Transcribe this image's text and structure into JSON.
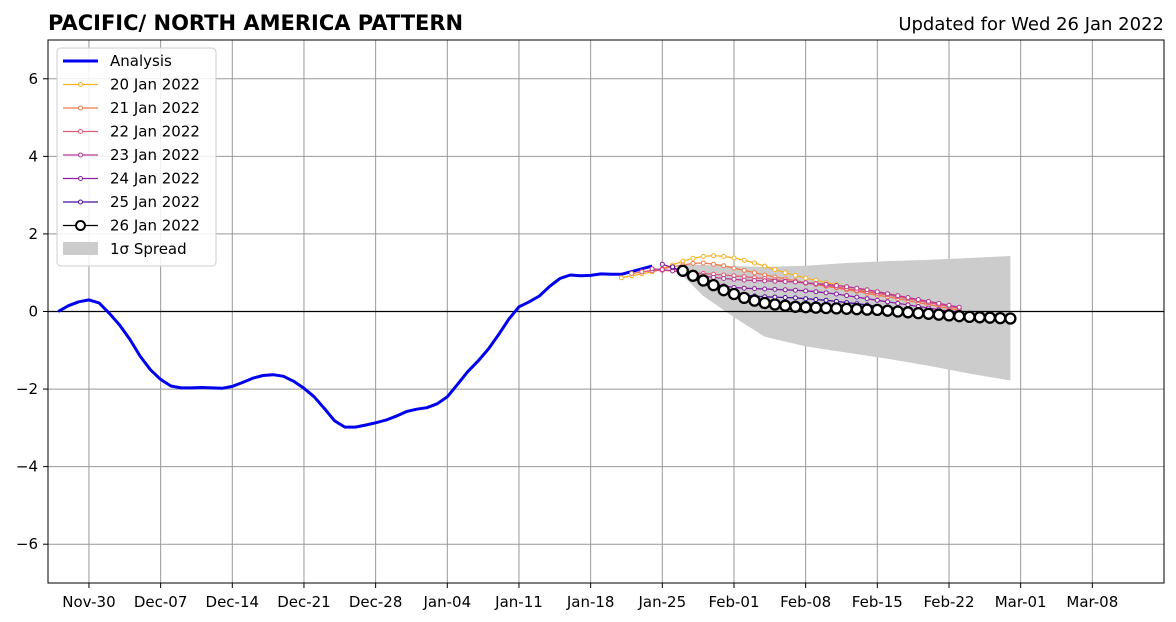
{
  "chart_data": {
    "type": "line",
    "title": "PACIFIC/ NORTH AMERICA PATTERN",
    "subtitle": "Updated for Wed 26 Jan 2022",
    "xlabel": "",
    "ylabel": "",
    "x_start": "2021-11-26",
    "x_end": "2022-03-15",
    "ylim": [
      -7,
      7
    ],
    "yticks": [
      -6,
      -4,
      -2,
      0,
      2,
      4,
      6
    ],
    "ytick_labels": [
      "−6",
      "−4",
      "−2",
      "0",
      "2",
      "4",
      "6"
    ],
    "xticks": [
      "2021-11-30",
      "2021-12-07",
      "2021-12-14",
      "2021-12-21",
      "2021-12-28",
      "2022-01-04",
      "2022-01-11",
      "2022-01-18",
      "2022-01-25",
      "2022-02-01",
      "2022-02-08",
      "2022-02-15",
      "2022-02-22",
      "2022-03-01",
      "2022-03-08"
    ],
    "xtick_labels": [
      "Nov-30",
      "Dec-07",
      "Dec-14",
      "Dec-21",
      "Dec-28",
      "Jan-04",
      "Jan-11",
      "Jan-18",
      "Jan-25",
      "Feb-01",
      "Feb-08",
      "Feb-15",
      "Feb-22",
      "Mar-01",
      "Mar-08"
    ],
    "grid": true,
    "legend_position": "top-left",
    "analysis": {
      "name": "Analysis",
      "color": "#0000ee",
      "x_start": "2021-11-27",
      "values": [
        0.0,
        0.15,
        0.25,
        0.3,
        0.22,
        -0.05,
        -0.35,
        -0.72,
        -1.15,
        -1.5,
        -1.75,
        -1.92,
        -1.97,
        -1.97,
        -1.96,
        -1.97,
        -1.98,
        -1.93,
        -1.83,
        -1.72,
        -1.65,
        -1.63,
        -1.67,
        -1.8,
        -1.98,
        -2.2,
        -2.5,
        -2.82,
        -2.98,
        -2.98,
        -2.93,
        -2.87,
        -2.8,
        -2.7,
        -2.58,
        -2.52,
        -2.48,
        -2.38,
        -2.2,
        -1.88,
        -1.55,
        -1.28,
        -0.97,
        -0.6,
        -0.2,
        0.12,
        0.25,
        0.4,
        0.65,
        0.85,
        0.94,
        0.92,
        0.93,
        0.97,
        0.96,
        0.96,
        1.03,
        1.1,
        1.17
      ]
    },
    "forecasts": [
      {
        "name": "20 Jan 2022",
        "color": "#f5b324",
        "x_start": "2022-01-21",
        "values": [
          0.87,
          0.92,
          0.97,
          1.02,
          1.1,
          1.2,
          1.3,
          1.37,
          1.42,
          1.44,
          1.42,
          1.38,
          1.32,
          1.25,
          1.17,
          1.08,
          1.0,
          0.93,
          0.86,
          0.8,
          0.74,
          0.69,
          0.64,
          0.59,
          0.54,
          0.49,
          0.44,
          0.39,
          0.34,
          0.29,
          0.24,
          0.19,
          0.14,
          0.1
        ]
      },
      {
        "name": "21 Jan 2022",
        "color": "#ef7b4c",
        "x_start": "2022-01-22",
        "values": [
          0.98,
          1.02,
          1.06,
          1.1,
          1.15,
          1.2,
          1.24,
          1.25,
          1.22,
          1.18,
          1.12,
          1.06,
          1.0,
          0.94,
          0.89,
          0.84,
          0.79,
          0.74,
          0.7,
          0.65,
          0.61,
          0.56,
          0.52,
          0.47,
          0.42,
          0.38,
          0.33,
          0.28,
          0.23,
          0.18,
          0.13,
          0.08,
          0.03
        ]
      },
      {
        "name": "22 Jan 2022",
        "color": "#e05c77",
        "x_start": "2022-01-23",
        "values": [
          1.02,
          1.05,
          1.06,
          1.05,
          1.03,
          1.0,
          0.98,
          0.96,
          0.94,
          0.92,
          0.9,
          0.87,
          0.85,
          0.82,
          0.79,
          0.76,
          0.73,
          0.7,
          0.67,
          0.63,
          0.59,
          0.55,
          0.51,
          0.47,
          0.43,
          0.38,
          0.33,
          0.28,
          0.23,
          0.18,
          0.13,
          0.08
        ]
      },
      {
        "name": "23 Jan 2022",
        "color": "#b93a96",
        "x_start": "2022-01-24",
        "values": [
          1.1,
          1.08,
          1.05,
          1.0,
          0.96,
          0.92,
          0.88,
          0.85,
          0.83,
          0.81,
          0.8,
          0.79,
          0.78,
          0.77,
          0.76,
          0.74,
          0.72,
          0.7,
          0.67,
          0.64,
          0.6,
          0.56,
          0.51,
          0.46,
          0.41,
          0.36,
          0.31,
          0.26,
          0.21,
          0.16,
          0.11
        ]
      },
      {
        "name": "24 Jan 2022",
        "color": "#8b1ea3",
        "x_start": "2022-01-25",
        "values": [
          1.22,
          1.13,
          1.0,
          0.88,
          0.78,
          0.71,
          0.66,
          0.62,
          0.6,
          0.59,
          0.58,
          0.57,
          0.56,
          0.55,
          0.53,
          0.51,
          0.48,
          0.45,
          0.41,
          0.37,
          0.33,
          0.29,
          0.25,
          0.21,
          0.17,
          0.13,
          0.09,
          0.05,
          0.01,
          -0.03
        ]
      },
      {
        "name": "25 Jan 2022",
        "color": "#4a0c9a",
        "x_start": "2022-01-26",
        "values": [
          1.15,
          1.0,
          0.85,
          0.72,
          0.6,
          0.52,
          0.46,
          0.42,
          0.4,
          0.38,
          0.37,
          0.36,
          0.35,
          0.33,
          0.31,
          0.29,
          0.26,
          0.23,
          0.2,
          0.17,
          0.13,
          0.09,
          0.05,
          0.01,
          -0.03,
          -0.07,
          -0.1,
          -0.13,
          -0.16
        ]
      },
      {
        "name": "26 Jan 2022",
        "color": "#000000",
        "x_start": "2022-01-27",
        "values": [
          1.05,
          0.92,
          0.8,
          0.68,
          0.55,
          0.45,
          0.35,
          0.28,
          0.22,
          0.18,
          0.15,
          0.12,
          0.11,
          0.1,
          0.09,
          0.08,
          0.07,
          0.06,
          0.05,
          0.04,
          0.02,
          0.0,
          -0.02,
          -0.04,
          -0.06,
          -0.08,
          -0.1,
          -0.12,
          -0.14,
          -0.15,
          -0.16,
          -0.17,
          -0.18
        ]
      }
    ],
    "spread": {
      "name": "1σ Spread",
      "color": "#cccccc",
      "x": [
        "2022-01-27",
        "2022-01-29",
        "2022-02-01",
        "2022-02-04",
        "2022-02-08",
        "2022-02-12",
        "2022-02-16",
        "2022-02-20",
        "2022-02-24",
        "2022-02-28"
      ],
      "upper": [
        1.22,
        1.2,
        1.17,
        1.15,
        1.18,
        1.25,
        1.3,
        1.33,
        1.38,
        1.43
      ],
      "lower": [
        0.92,
        0.4,
        -0.15,
        -0.65,
        -0.9,
        -1.06,
        -1.22,
        -1.4,
        -1.6,
        -1.78
      ]
    }
  }
}
